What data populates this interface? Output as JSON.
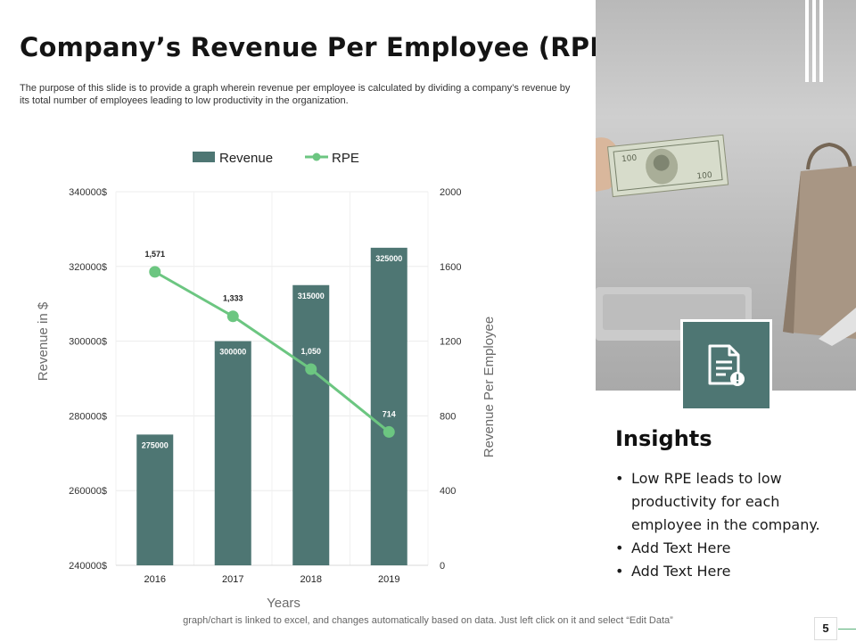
{
  "slide": {
    "title": "Company’s Revenue Per Employee (RPE)",
    "subtitle": "The purpose of this slide is to provide a graph wherein revenue per employee is calculated by dividing a company’s revenue by its total number of employees leading to low productivity in the organization.",
    "footer": "graph/chart is linked to excel,  and changes automatically based on data. Just left click on it and select “Edit Data”",
    "page_number": "5"
  },
  "insights": {
    "title": "Insights",
    "items": [
      "Low RPE leads to low productivity for each employee in the company.",
      "Add Text Here",
      "Add Text Here"
    ]
  },
  "icons": {
    "photo": "money-bill-and-shopping-bag-photo",
    "note": "document-alert-icon"
  },
  "colors": {
    "bar": "#4e7673",
    "line": "#6cc681",
    "accent": "#4e7673"
  },
  "chart_data": {
    "type": "bar",
    "categories": [
      "2016",
      "2017",
      "2018",
      "2019"
    ],
    "series": [
      {
        "name": "Revenue",
        "type": "bar",
        "axis": "left",
        "values": [
          275000,
          300000,
          315000,
          325000
        ],
        "labels": [
          "275000",
          "300000",
          "315000",
          "325000"
        ]
      },
      {
        "name": "RPE",
        "type": "line",
        "axis": "right",
        "values": [
          1571,
          1333,
          1050,
          714
        ],
        "labels": [
          "1,571",
          "1,333",
          "1,050",
          "714"
        ]
      }
    ],
    "xlabel": "Years",
    "ylabel": "Revenue in $",
    "y2label": "Revenue Per Employee",
    "ylim": [
      240000,
      340000
    ],
    "yticks": [
      240000,
      260000,
      280000,
      300000,
      320000,
      340000
    ],
    "ytick_labels": [
      "240000$",
      "260000$",
      "280000$",
      "300000$",
      "320000$",
      "340000$"
    ],
    "y2lim": [
      0,
      2000
    ],
    "y2ticks": [
      0,
      400,
      800,
      1200,
      1600,
      2000
    ],
    "y2tick_labels": [
      "0",
      "400",
      "800",
      "1200",
      "1600",
      "2000"
    ],
    "legend": "top-center",
    "grid": true
  }
}
